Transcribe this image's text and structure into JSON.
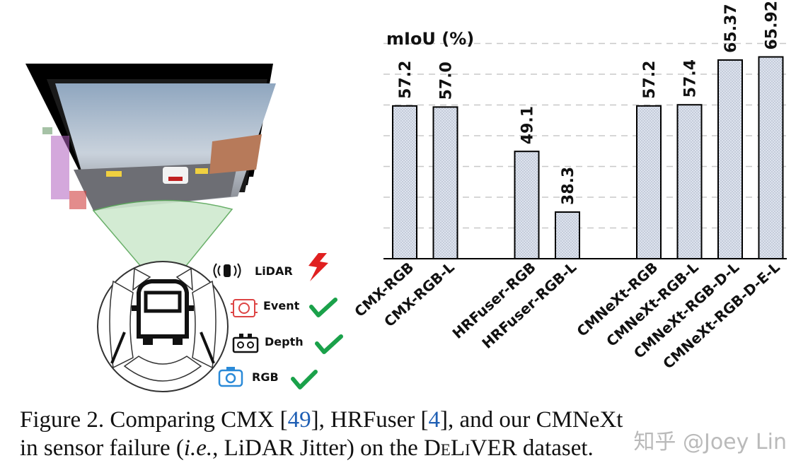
{
  "sensors": [
    {
      "name": "LiDAR",
      "status": "failure",
      "icon": "lidar-icon",
      "status_icon": "lightning-icon",
      "color": "#e02020"
    },
    {
      "name": "Event",
      "status": "ok",
      "icon": "event-camera-icon",
      "status_icon": "check-icon",
      "color": "#1aa14a"
    },
    {
      "name": "Depth",
      "status": "ok",
      "icon": "depth-camera-icon",
      "status_icon": "check-icon",
      "color": "#1aa14a"
    },
    {
      "name": "RGB",
      "status": "ok",
      "icon": "rgb-camera-icon",
      "status_icon": "check-icon",
      "color": "#1aa14a"
    }
  ],
  "chart_data": {
    "type": "bar",
    "title": "",
    "ylabel": "mIoU (%)",
    "xlabel": "",
    "ylim": [
      30,
      68
    ],
    "grid": "horizontal-dashed",
    "groups": [
      {
        "bars": [
          {
            "category": "CMX-RGB",
            "value": 57.2,
            "label": "57.2"
          },
          {
            "category": "CMX-RGB-L",
            "value": 57.0,
            "label": "57.0"
          }
        ]
      },
      {
        "bars": [
          {
            "category": "HRFuser-RGB",
            "value": 49.1,
            "label": "49.1"
          },
          {
            "category": "HRFuser-RGB-L",
            "value": 38.3,
            "label": "38.3"
          }
        ]
      },
      {
        "bars": [
          {
            "category": "CMNeXt-RGB",
            "value": 57.2,
            "label": "57.2"
          },
          {
            "category": "CMNeXt-RGB-L",
            "value": 57.4,
            "label": "57.4"
          },
          {
            "category": "CMNeXt-RGB-D-L",
            "value": 65.37,
            "label": "65.37"
          },
          {
            "category": "CMNeXt-RGB-D-E-L",
            "value": 65.92,
            "label": "65.92"
          }
        ]
      }
    ],
    "bar_color": "#dde3ee"
  },
  "caption": {
    "prefix": "Figure 2.",
    "t1": " Comparing CMX [",
    "c1": "49",
    "t2": "], HRFuser [",
    "c2": "4",
    "t3": "], and our CMNeXt",
    "t4": "in sensor failure (",
    "ie": "i.e.",
    "t5": ", LiDAR Jitter) on the ",
    "dataset": "DeLiVER",
    "t6": " dataset."
  },
  "watermark": "知乎 @Joey Lin"
}
